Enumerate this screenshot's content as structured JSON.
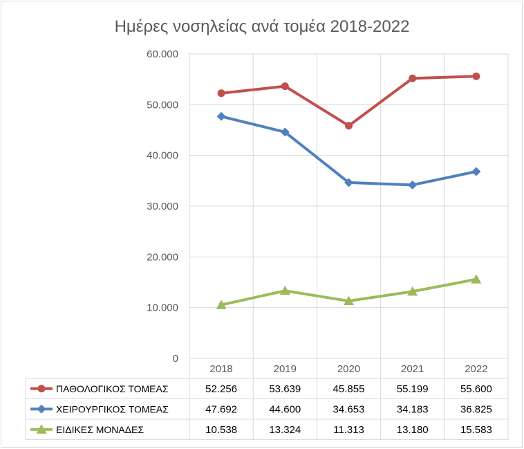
{
  "chart_data": {
    "type": "line",
    "title": "Ημέρες νοσηλείας ανά τομέα 2018-2022",
    "categories": [
      "2018",
      "2019",
      "2020",
      "2021",
      "2022"
    ],
    "ylim": [
      0,
      60000
    ],
    "yticks": [
      0,
      10000,
      20000,
      30000,
      40000,
      50000,
      60000
    ],
    "ytick_labels": [
      "0",
      "10.000",
      "20.000",
      "30.000",
      "40.000",
      "50.000",
      "60.000"
    ],
    "grid": true,
    "legend": "data-table",
    "series": [
      {
        "name": "ΠΑΘΟΛΟΓΙΚΟΣ ΤΟΜΕΑΣ",
        "values": [
          52256,
          53639,
          45855,
          55199,
          55600
        ],
        "labels": [
          "52.256",
          "53.639",
          "45.855",
          "55.199",
          "55.600"
        ],
        "color": "#c0504d",
        "marker": "circle"
      },
      {
        "name": "ΧΕΙΡΟΥΡΓΙΚΟΣ ΤΟΜΕΑΣ",
        "values": [
          47692,
          44600,
          34653,
          34183,
          36825
        ],
        "labels": [
          "47.692",
          "44.600",
          "34.653",
          "34.183",
          "36.825"
        ],
        "color": "#4f81bd",
        "marker": "diamond"
      },
      {
        "name": "ΕΙΔΙΚΕΣ ΜΟΝΑΔΕΣ",
        "values": [
          10538,
          13324,
          11313,
          13180,
          15583
        ],
        "labels": [
          "10.538",
          "13.324",
          "11.313",
          "13.180",
          "15.583"
        ],
        "color": "#9bbb59",
        "marker": "triangle"
      }
    ]
  }
}
